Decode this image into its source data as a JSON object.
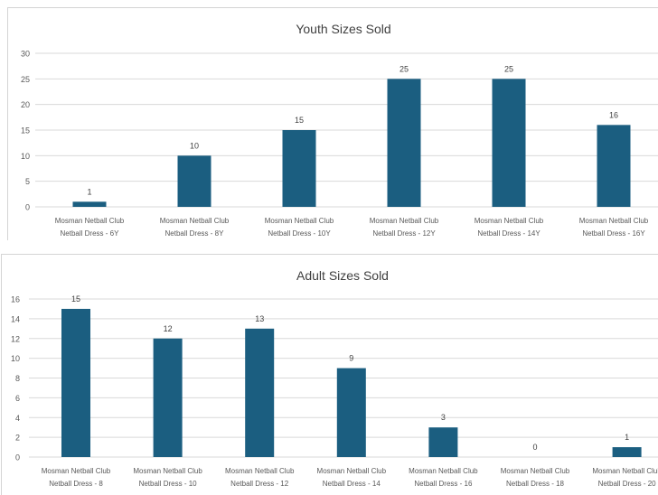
{
  "chart_data": [
    {
      "type": "bar",
      "title": "Youth Sizes Sold",
      "xlabel": "",
      "ylabel": "",
      "ylim": [
        0,
        30
      ],
      "yticks": [
        0,
        5,
        10,
        15,
        20,
        25,
        30
      ],
      "grid": true,
      "categories": [
        [
          "Mosman Netball Club",
          "Netball Dress - 6Y"
        ],
        [
          "Mosman Netball Club",
          "Netball Dress - 8Y"
        ],
        [
          "Mosman Netball Club",
          "Netball Dress - 10Y"
        ],
        [
          "Mosman Netball Club",
          "Netball Dress - 12Y"
        ],
        [
          "Mosman Netball Club",
          "Netball Dress - 14Y"
        ],
        [
          "Mosman Netball Club",
          "Netball Dress - 16Y"
        ]
      ],
      "values": [
        1,
        10,
        15,
        25,
        25,
        16
      ],
      "bar_color": "#1b5e80"
    },
    {
      "type": "bar",
      "title": "Adult Sizes Sold",
      "xlabel": "",
      "ylabel": "",
      "ylim": [
        0,
        16
      ],
      "yticks": [
        0,
        2,
        4,
        6,
        8,
        10,
        12,
        14,
        16
      ],
      "grid": true,
      "categories": [
        [
          "Mosman Netball Club",
          "Netball Dress - 8"
        ],
        [
          "Mosman Netball Club",
          "Netball Dress - 10"
        ],
        [
          "Mosman Netball Club",
          "Netball Dress - 12"
        ],
        [
          "Mosman Netball Club",
          "Netball Dress - 14"
        ],
        [
          "Mosman Netball Club",
          "Netball Dress - 16"
        ],
        [
          "Mosman Netball Club",
          "Netball Dress - 18"
        ],
        [
          "Mosman Netball Club",
          "Netball Dress - 20"
        ]
      ],
      "values": [
        15,
        12,
        13,
        9,
        3,
        0,
        1
      ],
      "bar_color": "#1b5e80"
    }
  ]
}
